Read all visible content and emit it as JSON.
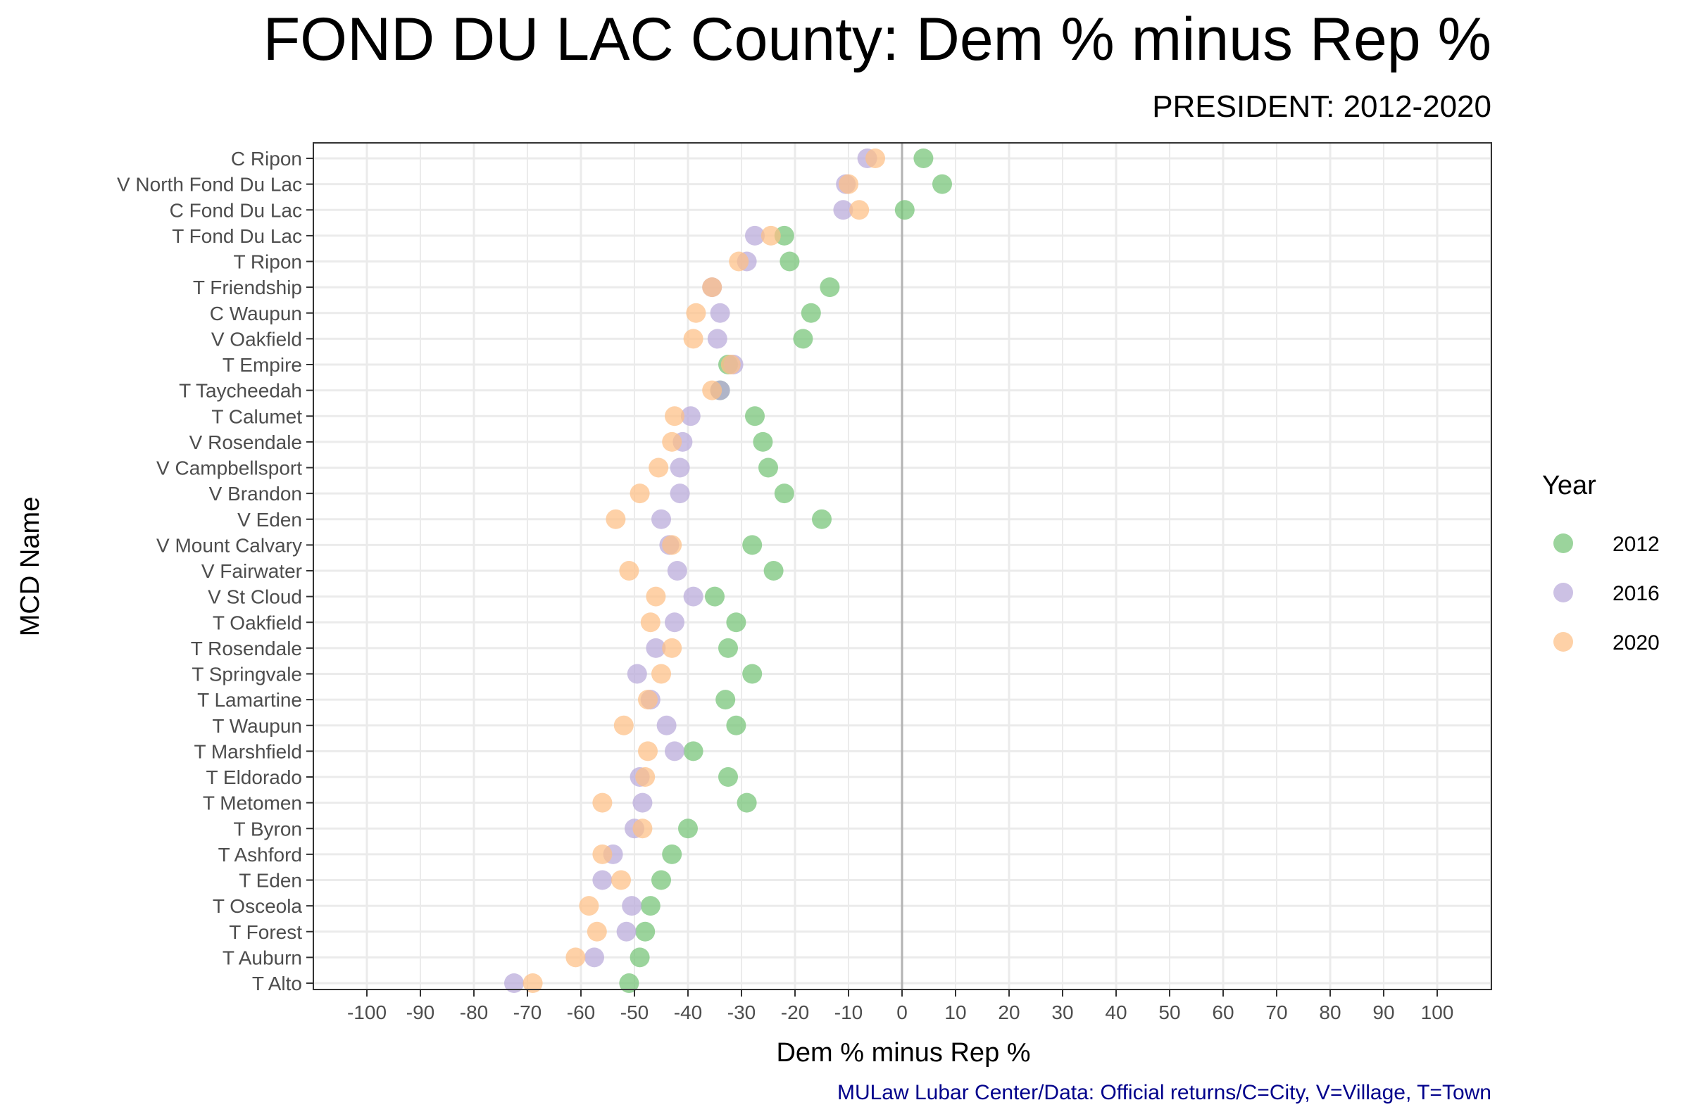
{
  "chart_data": {
    "type": "scatter",
    "title": "FOND DU LAC County: Dem % minus Rep %",
    "subtitle": "PRESIDENT: 2012-2020",
    "xlabel": "Dem % minus Rep %",
    "ylabel": "MCD Name",
    "caption": "MULaw Lubar Center/Data: Official returns/C=City, V=Village, T=Town",
    "xlim": [
      -110,
      110
    ],
    "xticks": [
      -100,
      -90,
      -80,
      -70,
      -60,
      -50,
      -40,
      -30,
      -20,
      -10,
      0,
      10,
      20,
      30,
      40,
      50,
      60,
      70,
      80,
      90,
      100
    ],
    "grid": true,
    "reference_line_x": 0,
    "legend": {
      "title": "Year",
      "position": "right"
    },
    "categories": [
      "C Ripon",
      "V North Fond Du Lac",
      "C Fond Du Lac",
      "T Fond Du Lac",
      "T Ripon",
      "T Friendship",
      "C Waupun",
      "V Oakfield",
      "T Empire",
      "T Taycheedah",
      "T Calumet",
      "V Rosendale",
      "V Campbellsport",
      "V Brandon",
      "V Eden",
      "V Mount Calvary",
      "V Fairwater",
      "V St Cloud",
      "T Oakfield",
      "T Rosendale",
      "T Springvale",
      "T Lamartine",
      "T Waupun",
      "T Marshfield",
      "T Eldorado",
      "T Metomen",
      "T Byron",
      "T Ashford",
      "T Eden",
      "T Osceola",
      "T Forest",
      "T Auburn",
      "T Alto"
    ],
    "series": [
      {
        "name": "2012",
        "color": "#74c476",
        "values": [
          4,
          7.5,
          0.5,
          -22,
          -21,
          -13.5,
          -17,
          -18.5,
          -32.5,
          -34,
          -27.5,
          -26,
          -25,
          -22,
          -15,
          -28,
          -24,
          -35,
          -31,
          -32.5,
          -28,
          -33,
          -31,
          -39,
          -32.5,
          -29,
          -40,
          -43,
          -45,
          -47,
          -48,
          -49,
          -51
        ]
      },
      {
        "name": "2016",
        "color": "#b8a9d9",
        "values": [
          -6.5,
          -10.5,
          -11,
          -27.5,
          -29,
          -35.5,
          -34,
          -34.5,
          -31.5,
          -34,
          -39.5,
          -41,
          -41.5,
          -41.5,
          -45,
          -43.5,
          -42,
          -39,
          -42.5,
          -46,
          -49.5,
          -47,
          -44,
          -42.5,
          -49,
          -48.5,
          -50,
          -54,
          -56,
          -50.5,
          -51.5,
          -57.5,
          -72.5
        ]
      },
      {
        "name": "2020",
        "color": "#fdbf85",
        "values": [
          -5,
          -10,
          -8,
          -24.5,
          -30.5,
          -35.5,
          -38.5,
          -39,
          -32,
          -35.5,
          -42.5,
          -43,
          -45.5,
          -49,
          -53.5,
          -43,
          -51,
          -46,
          -47,
          -43,
          -45,
          -47.5,
          -52,
          -47.5,
          -48,
          -56,
          -48.5,
          -56,
          -52.5,
          -58.5,
          -57,
          -61,
          -69
        ]
      }
    ]
  }
}
